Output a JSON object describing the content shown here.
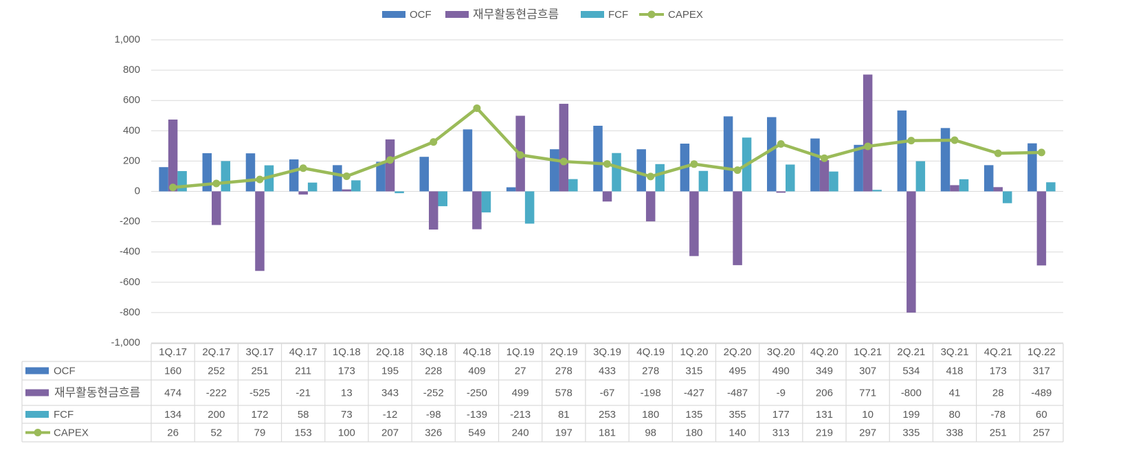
{
  "chart_data": {
    "type": "bar",
    "categories": [
      "1Q.17",
      "2Q.17",
      "3Q.17",
      "4Q.17",
      "1Q.18",
      "2Q.18",
      "3Q.18",
      "4Q.18",
      "1Q.19",
      "2Q.19",
      "3Q.19",
      "4Q.19",
      "1Q.20",
      "2Q.20",
      "3Q.20",
      "4Q.20",
      "1Q.21",
      "2Q.21",
      "3Q.21",
      "4Q.21",
      "1Q.22"
    ],
    "series": [
      {
        "name": "OCF",
        "type": "bar",
        "color": "#4a7ec0",
        "values": [
          160,
          252,
          251,
          211,
          173,
          195,
          228,
          409,
          27,
          278,
          433,
          278,
          315,
          495,
          490,
          349,
          307,
          534,
          418,
          173,
          317
        ]
      },
      {
        "name": "재무활동현금흐름",
        "type": "bar",
        "color": "#8064a2",
        "values": [
          474,
          -222,
          -525,
          -21,
          13,
          343,
          -252,
          -250,
          499,
          578,
          -67,
          -198,
          -427,
          -487,
          -9,
          206,
          771,
          -800,
          41,
          28,
          -489
        ]
      },
      {
        "name": "FCF",
        "type": "bar",
        "color": "#4bacc6",
        "values": [
          134,
          200,
          172,
          58,
          73,
          -12,
          -98,
          -139,
          -213,
          81,
          253,
          180,
          135,
          355,
          177,
          131,
          10,
          199,
          80,
          -78,
          60
        ]
      },
      {
        "name": "CAPEX",
        "type": "line",
        "color": "#9bbb59",
        "values": [
          26,
          52,
          79,
          153,
          100,
          207,
          326,
          549,
          240,
          197,
          181,
          98,
          180,
          140,
          313,
          219,
          297,
          335,
          338,
          251,
          257
        ]
      }
    ],
    "ylim": [
      -1000,
      1000
    ],
    "yticks": [
      {
        "value": -1000,
        "label": "-1,000"
      },
      -800,
      -600,
      -400,
      -200,
      0,
      200,
      400,
      600,
      800,
      {
        "value": 1000,
        "label": "1,000"
      }
    ],
    "grid": true,
    "legend": "top",
    "data_table": true
  }
}
